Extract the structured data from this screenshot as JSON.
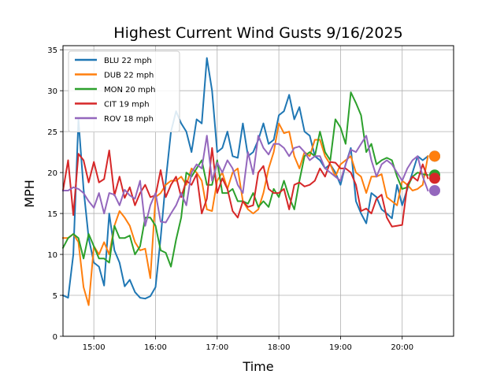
{
  "chart_data": {
    "type": "line",
    "title": "Highest Current Wind Gusts 9/16/2025",
    "xlabel": "Time",
    "ylabel": "MPH",
    "xlim": [
      "14:30",
      "20:50"
    ],
    "ylim": [
      0,
      35.5
    ],
    "x_ticks": [
      "15:00",
      "16:00",
      "17:00",
      "18:00",
      "19:00",
      "20:00"
    ],
    "y_ticks": [
      0,
      5,
      10,
      15,
      20,
      25,
      30,
      35
    ],
    "grid": true,
    "legend_position": "top-left",
    "series": [
      {
        "name": "BLU 22 mph",
        "color": "#1f77b4",
        "latest": 22,
        "x": [
          "14:30",
          "14:35",
          "14:40",
          "14:45",
          "14:50",
          "14:55",
          "15:00",
          "15:05",
          "15:10",
          "15:15",
          "15:20",
          "15:25",
          "15:30",
          "15:35",
          "15:40",
          "15:45",
          "15:50",
          "15:55",
          "16:00",
          "16:05",
          "16:10",
          "16:15",
          "16:20",
          "16:25",
          "16:30",
          "16:35",
          "16:40",
          "16:45",
          "16:50",
          "16:55",
          "17:00",
          "17:05",
          "17:10",
          "17:15",
          "17:20",
          "17:25",
          "17:30",
          "17:35",
          "17:40",
          "17:45",
          "17:50",
          "17:55",
          "18:00",
          "18:05",
          "18:10",
          "18:15",
          "18:20",
          "18:25",
          "18:30",
          "18:35",
          "18:40",
          "18:45",
          "18:50",
          "18:55",
          "19:00",
          "19:05",
          "19:10",
          "19:15",
          "19:20",
          "19:25",
          "19:30",
          "19:35",
          "19:40",
          "19:45",
          "19:50",
          "19:55",
          "20:00",
          "20:05",
          "20:10",
          "20:15",
          "20:20",
          "20:25"
        ],
        "y": [
          5.0,
          4.7,
          10.0,
          26.5,
          18.0,
          12.0,
          9.0,
          8.5,
          6.2,
          15.0,
          10.5,
          9.0,
          6.1,
          6.9,
          5.4,
          4.7,
          4.6,
          4.9,
          6.0,
          12.0,
          19.0,
          25.0,
          27.5,
          26.0,
          25.0,
          22.5,
          26.5,
          26.0,
          34.0,
          30.0,
          22.5,
          23.0,
          25.0,
          22.0,
          21.8,
          26.0,
          22.0,
          22.5,
          24.0,
          26.0,
          23.5,
          24.0,
          27.0,
          27.5,
          29.5,
          26.5,
          28.0,
          25.0,
          24.5,
          22.0,
          21.5,
          20.5,
          21.0,
          20.0,
          18.5,
          21.0,
          23.0,
          16.5,
          15.0,
          13.8,
          17.5,
          17.0,
          15.5,
          15.0,
          14.4,
          18.5,
          16.0,
          18.0,
          20.0,
          22.0,
          21.5,
          22.0
        ]
      },
      {
        "name": "DUB 22 mph",
        "color": "#ff7f0e",
        "latest": 22,
        "x": [
          "14:30",
          "14:35",
          "14:40",
          "14:45",
          "14:50",
          "14:55",
          "15:00",
          "15:05",
          "15:10",
          "15:15",
          "15:20",
          "15:25",
          "15:30",
          "15:35",
          "15:40",
          "15:45",
          "15:50",
          "15:55",
          "16:00",
          "16:05",
          "16:10",
          "16:15",
          "16:20",
          "16:25",
          "16:30",
          "16:35",
          "16:40",
          "16:45",
          "16:50",
          "16:55",
          "17:00",
          "17:05",
          "17:10",
          "17:15",
          "17:20",
          "17:25",
          "17:30",
          "17:35",
          "17:40",
          "17:45",
          "17:50",
          "17:55",
          "18:00",
          "18:05",
          "18:10",
          "18:15",
          "18:20",
          "18:25",
          "18:30",
          "18:35",
          "18:40",
          "18:45",
          "18:50",
          "18:55",
          "19:00",
          "19:05",
          "19:10",
          "19:15",
          "19:20",
          "19:25",
          "19:30",
          "19:35",
          "19:40",
          "19:45",
          "19:50",
          "19:55",
          "20:00",
          "20:05",
          "20:10",
          "20:15",
          "20:20",
          "20:25"
        ],
        "y": [
          12.0,
          12.0,
          12.5,
          11.5,
          6.0,
          3.8,
          11.0,
          10.0,
          11.5,
          10.0,
          13.5,
          15.3,
          14.5,
          13.5,
          11.5,
          10.5,
          10.7,
          7.1,
          17.0,
          17.5,
          18.5,
          19.0,
          19.0,
          19.5,
          18.5,
          20.5,
          20.0,
          19.0,
          15.5,
          15.3,
          19.0,
          20.0,
          18.0,
          20.0,
          20.5,
          16.5,
          15.5,
          15.0,
          15.5,
          17.5,
          20.5,
          22.5,
          26.0,
          24.8,
          25.0,
          22.0,
          20.5,
          22.5,
          22.0,
          24.0,
          24.0,
          22.0,
          21.0,
          19.5,
          21.0,
          21.5,
          22.0,
          20.0,
          19.5,
          17.5,
          19.5,
          19.5,
          19.8,
          17.0,
          16.5,
          16.0,
          19.0,
          18.5,
          17.8,
          18.0,
          18.5,
          22.0
        ]
      },
      {
        "name": "MON 20 mph",
        "color": "#2ca02c",
        "latest": 19.7,
        "x": [
          "14:30",
          "14:35",
          "14:40",
          "14:45",
          "14:50",
          "14:55",
          "15:00",
          "15:05",
          "15:10",
          "15:15",
          "15:20",
          "15:25",
          "15:30",
          "15:35",
          "15:40",
          "15:45",
          "15:50",
          "15:55",
          "16:00",
          "16:05",
          "16:10",
          "16:15",
          "16:20",
          "16:25",
          "16:30",
          "16:35",
          "16:40",
          "16:45",
          "16:50",
          "16:55",
          "17:00",
          "17:05",
          "17:10",
          "17:15",
          "17:20",
          "17:25",
          "17:30",
          "17:35",
          "17:40",
          "17:45",
          "17:50",
          "17:55",
          "18:00",
          "18:05",
          "18:10",
          "18:15",
          "18:20",
          "18:25",
          "18:30",
          "18:35",
          "18:40",
          "18:45",
          "18:50",
          "18:55",
          "19:00",
          "19:05",
          "19:10",
          "19:15",
          "19:20",
          "19:25",
          "19:30",
          "19:35",
          "19:40",
          "19:45",
          "19:50",
          "19:55",
          "20:00",
          "20:05",
          "20:10",
          "20:15",
          "20:20",
          "20:25"
        ],
        "y": [
          10.8,
          12.0,
          12.5,
          12.0,
          9.5,
          12.5,
          11.0,
          9.5,
          9.5,
          9.0,
          13.5,
          12.0,
          12.0,
          12.3,
          10.0,
          11.0,
          14.5,
          14.5,
          13.5,
          10.5,
          10.2,
          8.5,
          11.8,
          14.5,
          20.0,
          19.5,
          20.5,
          21.5,
          18.5,
          18.5,
          21.5,
          17.5,
          17.5,
          18.0,
          16.5,
          16.5,
          16.2,
          17.5,
          15.8,
          16.5,
          15.8,
          18.0,
          17.0,
          19.0,
          17.0,
          15.5,
          19.0,
          22.0,
          22.5,
          22.0,
          25.0,
          22.5,
          21.5,
          26.5,
          25.5,
          23.5,
          29.8,
          28.5,
          27.0,
          22.5,
          23.5,
          21.0,
          21.5,
          21.8,
          21.5,
          19.5,
          18.0,
          18.2,
          19.5,
          20.0,
          19.8,
          19.7
        ]
      },
      {
        "name": "CIT 19 mph",
        "color": "#d62728",
        "latest": 19.3,
        "x": [
          "14:30",
          "14:35",
          "14:40",
          "14:45",
          "14:50",
          "14:55",
          "15:00",
          "15:05",
          "15:10",
          "15:15",
          "15:20",
          "15:25",
          "15:30",
          "15:35",
          "15:40",
          "15:45",
          "15:50",
          "15:55",
          "16:00",
          "16:05",
          "16:10",
          "16:15",
          "16:20",
          "16:25",
          "16:30",
          "16:35",
          "16:40",
          "16:45",
          "16:50",
          "16:55",
          "17:00",
          "17:05",
          "17:10",
          "17:15",
          "17:20",
          "17:25",
          "17:30",
          "17:35",
          "17:40",
          "17:45",
          "17:50",
          "17:55",
          "18:00",
          "18:05",
          "18:10",
          "18:15",
          "18:20",
          "18:25",
          "18:30",
          "18:35",
          "18:40",
          "18:45",
          "18:50",
          "18:55",
          "19:00",
          "19:05",
          "19:10",
          "19:15",
          "19:20",
          "19:25",
          "19:30",
          "19:35",
          "19:40",
          "19:45",
          "19:50",
          "19:55",
          "20:00",
          "20:05",
          "20:10",
          "20:15",
          "20:20",
          "20:25"
        ],
        "y": [
          17.8,
          21.5,
          14.8,
          22.3,
          21.5,
          18.8,
          21.3,
          18.8,
          19.2,
          22.7,
          17.2,
          19.5,
          16.9,
          18.2,
          16.0,
          17.5,
          18.5,
          17.0,
          17.2,
          20.3,
          17.0,
          18.5,
          19.5,
          17.0,
          19.0,
          18.5,
          19.8,
          15.0,
          16.8,
          23.0,
          17.5,
          19.3,
          18.0,
          15.3,
          14.5,
          16.5,
          15.8,
          16.0,
          20.0,
          20.8,
          18.0,
          17.5,
          17.5,
          18.0,
          15.5,
          18.5,
          18.8,
          18.3,
          18.5,
          19.0,
          20.5,
          19.5,
          21.3,
          21.2,
          20.5,
          20.5,
          20.0,
          18.5,
          15.3,
          15.6,
          15.0,
          16.8,
          17.3,
          14.5,
          13.4,
          13.5,
          13.6,
          18.5,
          19.5,
          19.0,
          21.0,
          19.3
        ]
      },
      {
        "name": "ROV 18 mph",
        "color": "#9467bd",
        "latest": 17.8,
        "x": [
          "14:30",
          "14:35",
          "14:40",
          "14:45",
          "14:50",
          "14:55",
          "15:00",
          "15:05",
          "15:10",
          "15:15",
          "15:20",
          "15:25",
          "15:30",
          "15:35",
          "15:40",
          "15:45",
          "15:50",
          "15:55",
          "16:00",
          "16:05",
          "16:10",
          "16:15",
          "16:20",
          "16:25",
          "16:30",
          "16:35",
          "16:40",
          "16:45",
          "16:50",
          "16:55",
          "17:00",
          "17:05",
          "17:10",
          "17:15",
          "17:20",
          "17:25",
          "17:30",
          "17:35",
          "17:40",
          "17:45",
          "17:50",
          "17:55",
          "18:00",
          "18:05",
          "18:10",
          "18:15",
          "18:20",
          "18:25",
          "18:30",
          "18:35",
          "18:40",
          "18:45",
          "18:50",
          "18:55",
          "19:00",
          "19:05",
          "19:10",
          "19:15",
          "19:20",
          "19:25",
          "19:30",
          "19:35",
          "19:40",
          "19:45",
          "19:50",
          "19:55",
          "20:00",
          "20:05",
          "20:10",
          "20:15",
          "20:20",
          "20:25"
        ],
        "y": [
          17.8,
          17.8,
          18.2,
          18.0,
          17.5,
          16.5,
          15.7,
          17.5,
          15.0,
          17.5,
          17.3,
          16.0,
          17.9,
          17.2,
          16.8,
          19.0,
          13.5,
          16.0,
          17.5,
          14.0,
          13.9,
          15.0,
          16.0,
          17.5,
          16.0,
          20.0,
          21.0,
          20.5,
          24.5,
          19.0,
          21.2,
          20.0,
          21.5,
          20.5,
          18.5,
          17.5,
          22.5,
          19.8,
          24.5,
          23.0,
          22.2,
          23.5,
          23.5,
          23.0,
          22.0,
          23.0,
          23.2,
          22.5,
          21.5,
          22.0,
          22.0,
          20.5,
          20.0,
          19.5,
          19.0,
          21.0,
          22.8,
          22.5,
          23.5,
          24.5,
          21.5,
          19.5,
          21.0,
          21.5,
          21.0,
          20.0,
          19.0,
          20.5,
          21.5,
          22.0,
          19.5,
          17.8
        ]
      }
    ]
  }
}
